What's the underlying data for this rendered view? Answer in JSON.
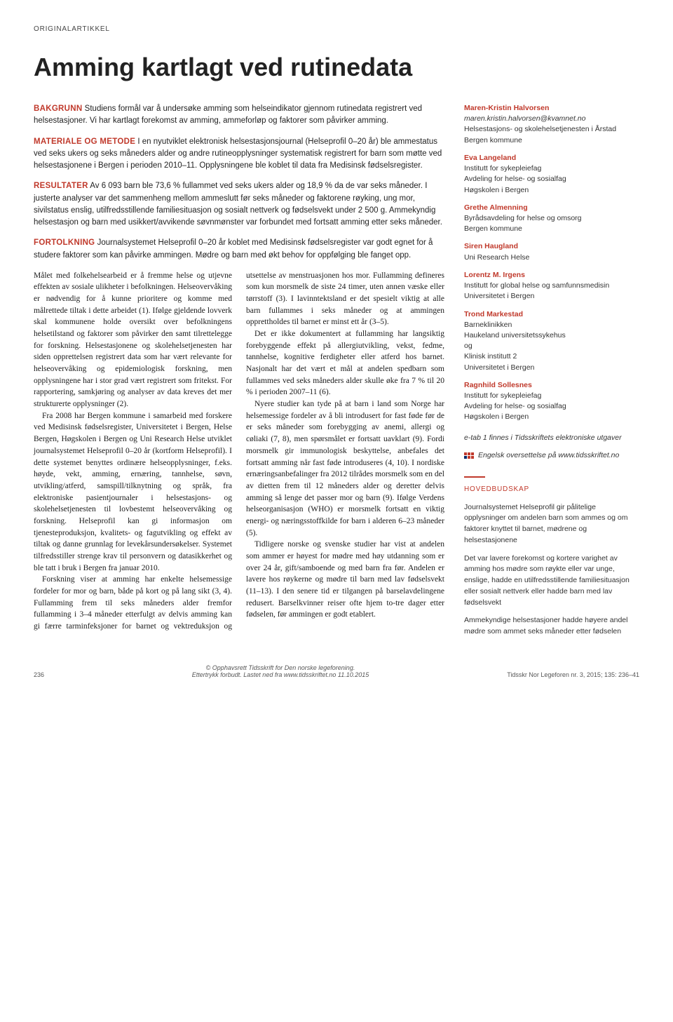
{
  "articleType": "ORIGINALARTIKKEL",
  "title": "Amming kartlagt ved rutinedata",
  "abstract": {
    "bakgrunn": {
      "lead": "BAKGRUNN",
      "text": " Studiens formål var å undersøke amming som helseindikator gjennom rutinedata registrert ved helsestasjoner. Vi har kartlagt forekomst av amming, ammeforløp og faktorer som påvirker amming."
    },
    "materiale": {
      "lead": "MATERIALE OG METODE",
      "text": " I en nyutviklet elektronisk helsestasjonsjournal (Helseprofil 0–20 år) ble ammestatus ved seks ukers og seks måneders alder og andre rutineopplysninger systematisk registrert for barn som møtte ved helsestasjonene i Bergen i perioden 2010–11. Opplysningene ble koblet til data fra Medisinsk fødselsregister."
    },
    "resultater": {
      "lead": "RESULTATER",
      "text": " Av 6 093 barn ble 73,6 % fullammet ved seks ukers alder og 18,9 % da de var seks måneder. I justerte analyser var det sammenheng mellom ammeslutt før seks måneder og faktorene røyking, ung mor, sivilstatus enslig, utilfredsstillende familiesituasjon og sosialt nettverk og fødselsvekt under 2 500 g. Ammekyndig helsestasjon og barn med usikkert/avvikende søvnmønster var forbundet med fortsatt amming etter seks måneder."
    },
    "fortolkning": {
      "lead": "FORTOLKNING",
      "text": " Journalsystemet Helseprofil 0–20 år koblet med Medisinsk fødselsregister var godt egnet for å studere faktorer som kan påvirke ammingen. Mødre og barn med økt behov for oppfølging ble fanget opp."
    }
  },
  "body": {
    "p1": "Målet med folkehelsearbeid er å fremme helse og utjevne effekten av sosiale ulikheter i befolkningen. Helseovervåking er nødvendig for å kunne prioritere og komme med målrettede tiltak i dette arbeidet (1). Ifølge gjeldende lovverk skal kommunene holde oversikt over befolkningens helsetilstand og faktorer som påvirker den samt tilrettelegge for forskning. Helsestasjonene og skolehelsetjenesten har siden opprettelsen registrert data som har vært relevante for helseovervåking og epidemiologisk forskning, men opplysningene har i stor grad vært registrert som fritekst. For rapportering, samkjøring og analyser av data kreves det mer strukturerte opplysninger (2).",
    "p2": "Fra 2008 har Bergen kommune i samarbeid med forskere ved Medisinsk fødselsregister, Universitetet i Bergen, Helse Bergen, Høgskolen i Bergen og Uni Research Helse utviklet journalsystemet Helseprofil 0–20 år (kortform Helseprofil). I dette systemet benyttes ordinære helseopplysninger, f.eks. høyde, vekt, amming, ernæring, tannhelse, søvn, utvikling/atferd, samspill/tilknytning og språk, fra elektroniske pasientjournaler i helsestasjons- og skolehelsetjenesten til lovbestemt helseovervåking og forskning. Helseprofil kan gi informasjon om tjenesteproduksjon, kvalitets- og fagutvikling og effekt av tiltak og danne grunnlag for levekårsundersøkelser. Systemet tilfredsstiller strenge krav til personvern og datasikkerhet og ble tatt i bruk i Bergen fra januar 2010.",
    "p3": "Forskning viser at amming har enkelte helsemessige fordeler for mor og barn, både på kort og på lang sikt (3, 4). Fullamming frem til seks måneders alder fremfor fullamming i 3–4 måneder etterfulgt av delvis amming kan gi færre tarminfeksjoner for barnet og vektreduksjon og utsettelse av menstruasjonen hos mor. Fullamming defineres som kun morsmelk de siste 24 timer, uten annen væske eller tørrstoff (3). I lavinntektsland er det spesielt viktig at alle barn fullammes i seks måneder og at ammingen opprettholdes til barnet er minst ett år (3–5).",
    "p4": "Det er ikke dokumentert at fullamming har langsiktig forebyggende effekt på allergiutvikling, vekst, fedme, tannhelse, kognitive ferdigheter eller atferd hos barnet. Nasjonalt har det vært et mål at andelen spedbarn som fullammes ved seks måneders alder skulle øke fra 7 % til 20 % i perioden 2007–11 (6).",
    "p5": "Nyere studier kan tyde på at barn i land som Norge har helsemessige fordeler av å bli introdusert for fast føde før de er seks måneder som forebygging av anemi, allergi og cøliaki (7, 8), men spørsmålet er fortsatt uavklart (9). Fordi morsmelk gir immunologisk beskyttelse, anbefales det fortsatt amming når fast føde introduseres (4, 10). I nordiske ernæringsanbefalinger fra 2012 tilrådes morsmelk som en del av dietten frem til 12 måneders alder og deretter delvis amming så lenge det passer mor og barn (9). Ifølge Verdens helseorganisasjon (WHO) er morsmelk fortsatt en viktig energi- og næringsstoffkilde for barn i alderen 6–23 måneder (5).",
    "p6": "Tidligere norske og svenske studier har vist at andelen som ammer er høyest for mødre med høy utdanning som er over 24 år, gift/samboende og med barn fra før. Andelen er lavere hos røykerne og mødre til barn med lav fødselsvekt (11–13). I den senere tid er tilgangen på barselavdelingene redusert. Barselkvinner reiser ofte hjem to-tre dager etter fødselen, før ammingen er godt etablert."
  },
  "authors": [
    {
      "name": "Maren-Kristin Halvorsen",
      "email": "maren.kristin.halvorsen@kvamnet.no",
      "affils": [
        "Helsestasjons- og skolehelsetjenesten i Årstad",
        "Bergen kommune"
      ]
    },
    {
      "name": "Eva Langeland",
      "affils": [
        "Institutt for sykepleiefag",
        "Avdeling for helse- og sosialfag",
        "Høgskolen i Bergen"
      ]
    },
    {
      "name": "Grethe Almenning",
      "affils": [
        "Byrådsavdeling for helse og omsorg",
        "Bergen kommune"
      ]
    },
    {
      "name": "Siren Haugland",
      "affils": [
        "Uni Research Helse"
      ]
    },
    {
      "name": "Lorentz M. Irgens",
      "affils": [
        "Institutt for global helse og samfunnsmedisin",
        "Universitetet i Bergen"
      ]
    },
    {
      "name": "Trond Markestad",
      "affils": [
        "Barneklinikken",
        "Haukeland universitetssykehus",
        "og",
        "Klinisk institutt 2",
        "Universitetet i Bergen"
      ]
    },
    {
      "name": "Ragnhild Sollesnes",
      "affils": [
        "Institutt for sykepleiefag",
        "Avdeling for helse- og sosialfag",
        "Høgskolen i Bergen"
      ]
    }
  ],
  "etab": "e-tab 1 finnes i Tidsskriftets elektroniske utgaver",
  "translation": "Engelsk oversettelse på www.tidsskriftet.no",
  "hovedbudskap": {
    "title": "HOVEDBUDSKAP",
    "items": [
      "Journalsystemet Helseprofil gir pålitelige opplysninger om andelen barn som ammes og om faktorer knyttet til barnet, mødrene og helsestasjonene",
      "Det var lavere forekomst og kortere varighet av amming hos mødre som røykte eller var unge, enslige, hadde en utilfredsstillende familiesituasjon eller sosialt nettverk eller hadde barn med lav fødselsvekt",
      "Ammekyndige helsestasjoner hadde høyere andel mødre som ammet seks måneder etter fødselen"
    ]
  },
  "footer": {
    "pageNum": "236",
    "centerLine1": "© Opphavsrett Tidsskrift for Den norske legeforening.",
    "centerLine2": "Ettertrykk forbudt. Lastet ned fra www.tidsskriftet.no 11.10.2015",
    "right": "Tidsskr Nor Legeforen nr. 3, 2015; 135: 236–41"
  },
  "colors": {
    "accent": "#c0392b",
    "text": "#1a1a1a",
    "background": "#ffffff"
  }
}
